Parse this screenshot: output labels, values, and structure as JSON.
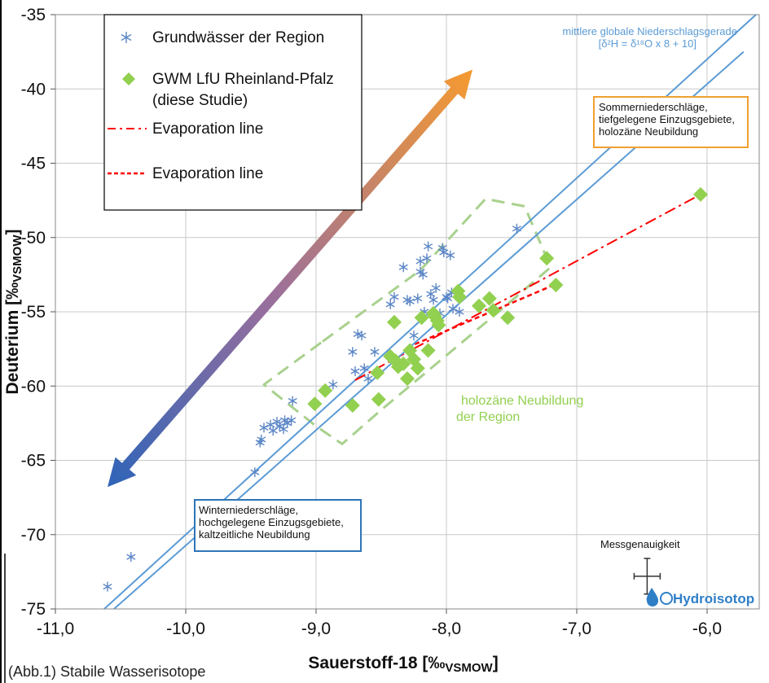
{
  "caption": "(Abb.1) Stabile Wasserisotope",
  "logo_text": "Hydroisotop",
  "colors": {
    "gwmw_blue": "#5b86c6",
    "gwm_green": "#92d050",
    "gmwl_line": "#5b9bd5",
    "evap_red": "#ff0000",
    "dashed_green": "#a9d18e",
    "box_orange": "#f0a030",
    "box_blue": "#2e75b6"
  },
  "chart_data": {
    "type": "scatter",
    "xlabel": "Sauerstoff-18 [‰",
    "xlabel_sub": "VSMOW",
    "xlabel_end": "]",
    "ylabel": "Deuterium [‰",
    "ylabel_sub": "VSMOW",
    "ylabel_end": "]",
    "xlim": [
      -11,
      -5.6
    ],
    "ylim": [
      -75,
      -35
    ],
    "x_ticks": [
      -11,
      -10,
      -9,
      -8,
      -7,
      -6
    ],
    "x_tick_labels": [
      "-11,0",
      "-10,0",
      "-9,0",
      "-8,0",
      "-7,0",
      "-6,0"
    ],
    "y_ticks": [
      -75,
      -70,
      -65,
      -60,
      -55,
      -50,
      -45,
      -40,
      -35
    ],
    "y_tick_labels": [
      "-75",
      "-70",
      "-65",
      "-60",
      "-55",
      "-50",
      "-45",
      "-40",
      "-35"
    ],
    "grid": true,
    "legend_position": "top-left",
    "legend": [
      {
        "label": "Grundwässer der Region",
        "marker": "asterisk"
      },
      {
        "label": "GWM LfU Rheinland-Pfalz",
        "label2": "(diese Studie)",
        "marker": "diamond"
      },
      {
        "label": "Evaporation line",
        "marker": "dashdot"
      },
      {
        "label": "Evaporation line",
        "marker": "dashed"
      }
    ],
    "series": [
      {
        "name": "Grundwässer der Region",
        "points": [
          [
            -10.6,
            -73.5
          ],
          [
            -10.42,
            -71.5
          ],
          [
            -9.47,
            -65.8
          ],
          [
            -9.43,
            -63.8
          ],
          [
            -9.42,
            -63.6
          ],
          [
            -9.4,
            -62.8
          ],
          [
            -9.35,
            -62.6
          ],
          [
            -9.33,
            -63.0
          ],
          [
            -9.3,
            -62.4
          ],
          [
            -9.28,
            -62.7
          ],
          [
            -9.25,
            -62.9
          ],
          [
            -9.24,
            -62.3
          ],
          [
            -9.22,
            -62.5
          ],
          [
            -9.19,
            -62.3
          ],
          [
            -9.18,
            -61.0
          ],
          [
            -8.87,
            -59.9
          ],
          [
            -8.72,
            -57.7
          ],
          [
            -8.7,
            -59.0
          ],
          [
            -8.68,
            -56.5
          ],
          [
            -8.65,
            -56.6
          ],
          [
            -8.63,
            -58.8
          ],
          [
            -8.6,
            -59.5
          ],
          [
            -8.55,
            -57.7
          ],
          [
            -8.43,
            -54.5
          ],
          [
            -8.4,
            -54.0
          ],
          [
            -8.33,
            -52.0
          ],
          [
            -8.3,
            -54.2
          ],
          [
            -8.28,
            -54.3
          ],
          [
            -8.25,
            -56.6
          ],
          [
            -8.22,
            -54.1
          ],
          [
            -8.2,
            -52.3
          ],
          [
            -8.2,
            -51.6
          ],
          [
            -8.18,
            -52.5
          ],
          [
            -8.17,
            -55.0
          ],
          [
            -8.15,
            -51.4
          ],
          [
            -8.14,
            -50.6
          ],
          [
            -8.12,
            -53.8
          ],
          [
            -8.1,
            -54.2
          ],
          [
            -8.08,
            -53.4
          ],
          [
            -8.05,
            -55.1
          ],
          [
            -8.03,
            -50.7
          ],
          [
            -8.02,
            -51.0
          ],
          [
            -8.0,
            -54.0
          ],
          [
            -7.99,
            -54.1
          ],
          [
            -7.97,
            -51.2
          ],
          [
            -7.96,
            -53.7
          ],
          [
            -7.95,
            -54.8
          ],
          [
            -7.9,
            -55.0
          ],
          [
            -7.46,
            -49.4
          ]
        ]
      },
      {
        "name": "GWM LfU Rheinland-Pfalz (diese Studie)",
        "points": [
          [
            -9.01,
            -61.2
          ],
          [
            -8.93,
            -60.3
          ],
          [
            -8.72,
            -61.3
          ],
          [
            -8.53,
            -59.1
          ],
          [
            -8.52,
            -60.9
          ],
          [
            -8.43,
            -58.0
          ],
          [
            -8.4,
            -55.7
          ],
          [
            -8.39,
            -58.3
          ],
          [
            -8.37,
            -58.7
          ],
          [
            -8.33,
            -58.5
          ],
          [
            -8.3,
            -59.5
          ],
          [
            -8.28,
            -57.6
          ],
          [
            -8.25,
            -58.2
          ],
          [
            -8.22,
            -58.8
          ],
          [
            -8.19,
            -55.4
          ],
          [
            -8.14,
            -57.6
          ],
          [
            -8.1,
            -55.1
          ],
          [
            -8.09,
            -55.3
          ],
          [
            -8.07,
            -55.6
          ],
          [
            -8.06,
            -55.9
          ],
          [
            -7.91,
            -53.6
          ],
          [
            -7.9,
            -54.0
          ],
          [
            -7.75,
            -54.6
          ],
          [
            -7.67,
            -54.1
          ],
          [
            -7.64,
            -54.9
          ],
          [
            -7.53,
            -55.4
          ],
          [
            -7.23,
            -51.4
          ],
          [
            -7.16,
            -53.2
          ],
          [
            -6.05,
            -47.1
          ]
        ]
      }
    ],
    "lines": [
      {
        "name": "mittlere globale Niederschlagsgerade",
        "label2": "[δ²H = δ¹⁸O x 8 + 10]",
        "style": "solid-blue-gmwl"
      },
      {
        "name": "Evaporation line",
        "from": [
          -8.7,
          -59.6
        ],
        "to": [
          -6.05,
          -47.1
        ],
        "style": "dashdot"
      },
      {
        "name": "Evaporation line",
        "from": [
          -8.3,
          -57.4
        ],
        "to": [
          -7.15,
          -53.1
        ],
        "style": "dashed"
      },
      {
        "name": "GWMW line",
        "from": [
          -10.55,
          -75.0
        ],
        "to": [
          -5.72,
          -37.5
        ],
        "style": "solid-blue"
      }
    ],
    "annotations": {
      "gmwl_label_1": "mittlere globale Niederschlagsgerade",
      "gmwl_label_2": "[δ²H = δ¹⁸O x 8 + 10]",
      "summer_box": [
        "Sommerniederschläge,",
        "tiefgelegene Einzugsgebiete,",
        "holozäne Neubildung"
      ],
      "winter_box": [
        "Winterniederschläge,",
        "hochgelegene Einzugsgebiete,",
        "kaltzeitliche Neubildung"
      ],
      "holocene_label": [
        "holozäne Neubildung",
        "der Region"
      ],
      "precision_label": "Messgenauigkeit",
      "precision_center": [
        -6.46,
        -72.8
      ],
      "precision_dx": 0.1,
      "precision_dy": 1.2,
      "arrow_from": [
        -10.6,
        -66.8
      ],
      "arrow_to": [
        -7.8,
        -38.7
      ],
      "dashed_region_poly": [
        [
          -8.95,
          -57.0
        ],
        [
          -8.2,
          -52.2
        ],
        [
          -7.7,
          -47.4
        ],
        [
          -7.4,
          -47.9
        ],
        [
          -7.2,
          -52.0
        ],
        [
          -7.6,
          -55.0
        ],
        [
          -8.5,
          -61.6
        ],
        [
          -8.8,
          -63.9
        ],
        [
          -9.0,
          -62.7
        ],
        [
          -9.4,
          -59.9
        ]
      ]
    }
  }
}
